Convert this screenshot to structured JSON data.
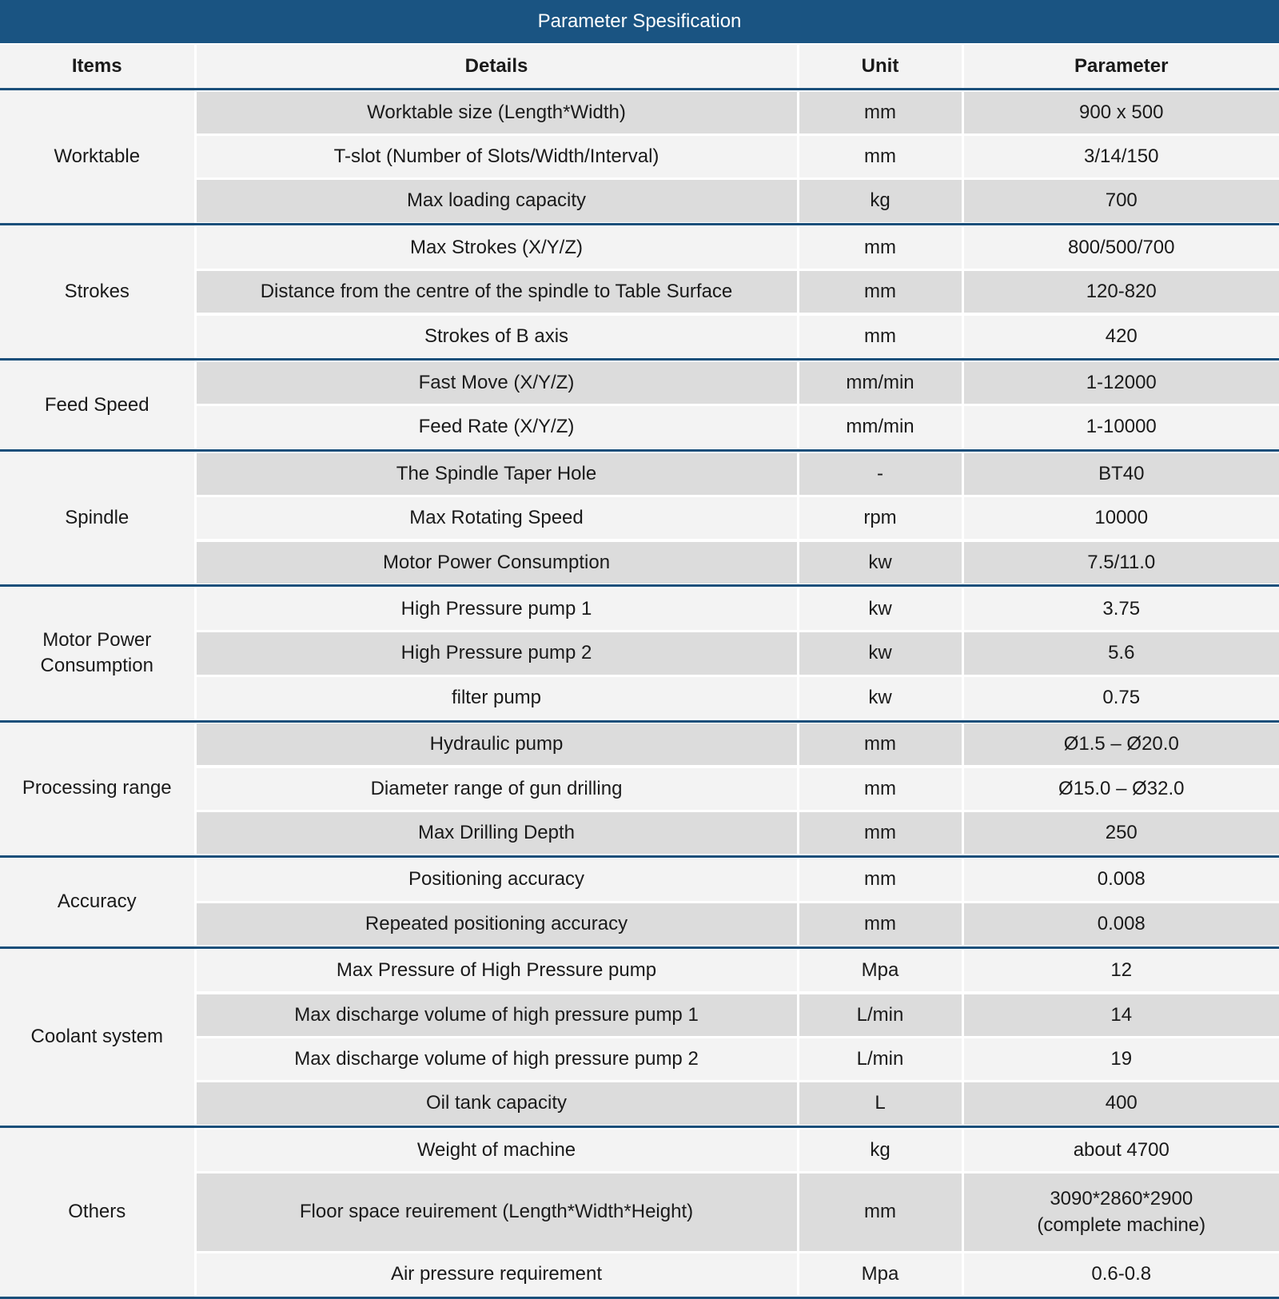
{
  "title": "Parameter Spesification",
  "header": [
    "Items",
    "Details",
    "Unit",
    "Parameter"
  ],
  "groups": [
    {
      "item": "Worktable",
      "rows": [
        [
          "Worktable size (Length*Width)",
          "mm",
          "900 x 500"
        ],
        [
          "T-slot (Number of Slots/Width/Interval)",
          "mm",
          "3/14/150"
        ],
        [
          "Max loading capacity",
          "kg",
          "700"
        ]
      ]
    },
    {
      "item": "Strokes",
      "rows": [
        [
          "Max Strokes (X/Y/Z)",
          "mm",
          "800/500/700"
        ],
        [
          "Distance from the centre of the spindle to Table Surface",
          "mm",
          "120-820"
        ],
        [
          "Strokes of B axis",
          "mm",
          "420"
        ]
      ]
    },
    {
      "item": "Feed Speed",
      "rows": [
        [
          "Fast Move (X/Y/Z)",
          "mm/min",
          "1-12000"
        ],
        [
          "Feed Rate (X/Y/Z)",
          "mm/min",
          "1-10000"
        ]
      ]
    },
    {
      "item": "Spindle",
      "rows": [
        [
          "The Spindle Taper Hole",
          "-",
          "BT40"
        ],
        [
          "Max Rotating Speed",
          "rpm",
          "10000"
        ],
        [
          "Motor Power Consumption",
          "kw",
          "7.5/11.0"
        ]
      ]
    },
    {
      "item": "Motor Power Consumption",
      "rows": [
        [
          "High Pressure pump 1",
          "kw",
          "3.75"
        ],
        [
          "High Pressure pump 2",
          "kw",
          "5.6"
        ],
        [
          "filter pump",
          "kw",
          "0.75"
        ]
      ]
    },
    {
      "item": "Processing range",
      "rows": [
        [
          "Hydraulic pump",
          "mm",
          "Ø1.5 – Ø20.0"
        ],
        [
          "Diameter range of gun drilling",
          "mm",
          "Ø15.0 – Ø32.0"
        ],
        [
          "Max Drilling Depth",
          "mm",
          "250"
        ]
      ]
    },
    {
      "item": "Accuracy",
      "rows": [
        [
          "Positioning accuracy",
          "mm",
          "0.008"
        ],
        [
          "Repeated positioning accuracy",
          "mm",
          "0.008"
        ]
      ]
    },
    {
      "item": "Coolant system",
      "rows": [
        [
          "Max Pressure of High Pressure pump",
          "Mpa",
          "12"
        ],
        [
          "Max discharge volume of high pressure pump 1",
          "L/min",
          "14"
        ],
        [
          "Max discharge volume of high pressure pump 2",
          "L/min",
          "19"
        ],
        [
          "Oil tank capacity",
          "L",
          "400"
        ]
      ]
    },
    {
      "item": "Others",
      "rows": [
        [
          "Weight of machine",
          "kg",
          "about 4700"
        ],
        [
          "Floor space reuirement (Length*Width*Height)",
          "mm",
          "3090*2860*2900\n(complete machine)"
        ],
        [
          "Air pressure requirement",
          "Mpa",
          "0.6-0.8"
        ]
      ]
    }
  ]
}
